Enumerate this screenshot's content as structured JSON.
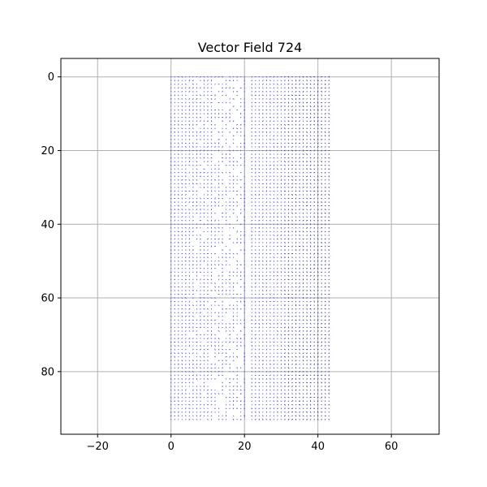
{
  "chart_data": {
    "type": "quiver",
    "title": "Vector Field 724",
    "xlabel": "",
    "ylabel": "",
    "xlim": [
      -30,
      73
    ],
    "ylim": [
      97,
      -5
    ],
    "y_inverted": true,
    "grid": true,
    "x_ticks": [
      -20,
      0,
      20,
      40,
      60
    ],
    "y_ticks": [
      0,
      20,
      40,
      60,
      80
    ],
    "x_tick_labels": [
      "−20",
      "0",
      "20",
      "40",
      "60"
    ],
    "y_tick_labels": [
      "0",
      "20",
      "40",
      "60",
      "80"
    ],
    "field": {
      "x_range": [
        0,
        43
      ],
      "y_range": [
        0,
        93
      ],
      "step": 1,
      "missing_column_x": 21,
      "arrow_color": "#4a4adf",
      "arrow_color_right": "#2a2a9a"
    },
    "colors": {
      "axes_edge": "#000000",
      "grid": "#b0b0b0",
      "background": "#ffffff"
    }
  }
}
